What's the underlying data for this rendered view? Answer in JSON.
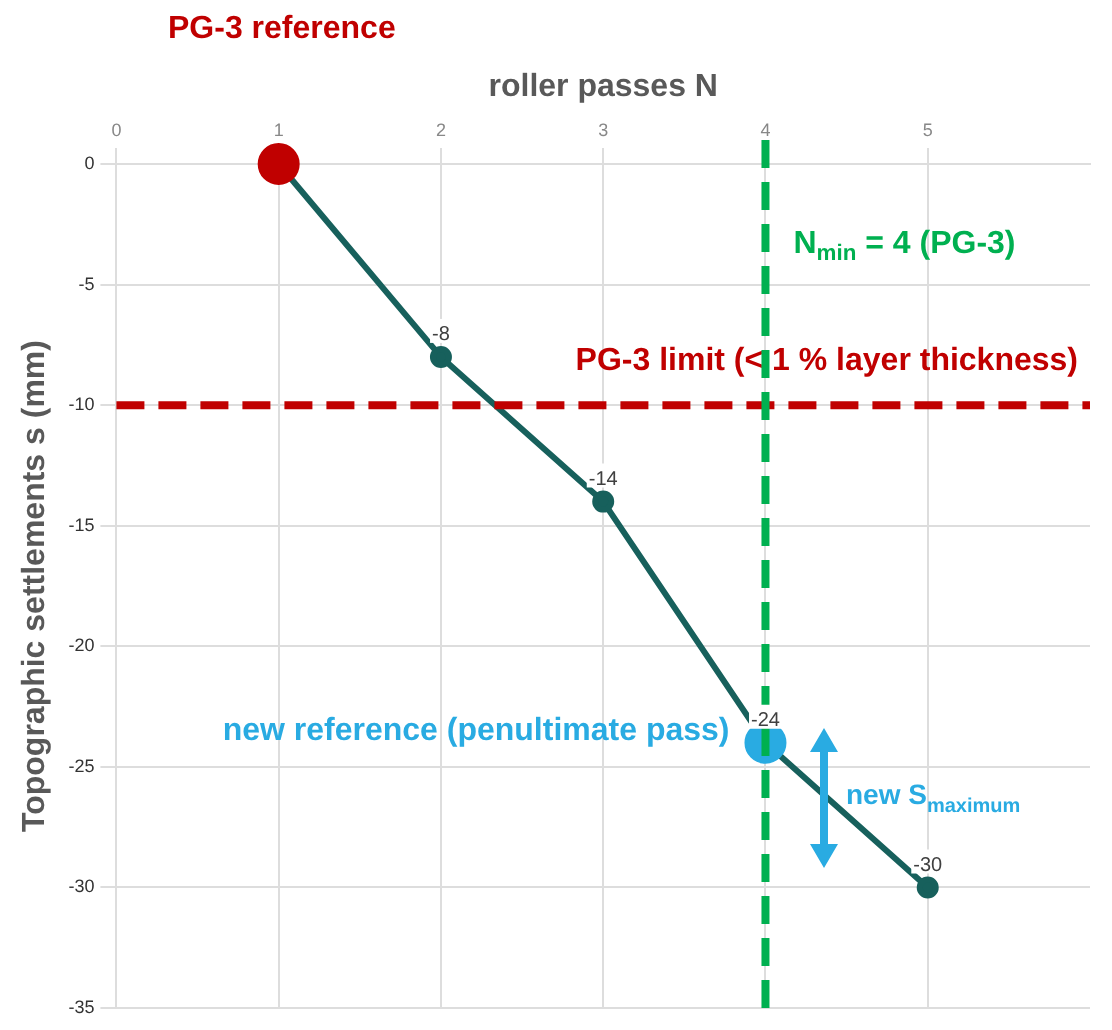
{
  "chart_data": {
    "type": "line",
    "xlabel": "roller passes N",
    "ylabel": "Topographic settlements s (mm)",
    "x": [
      1,
      2,
      3,
      4,
      5
    ],
    "series": [
      {
        "type": "line",
        "color": "#17605c",
        "values": [
          0,
          -8,
          -14,
          -24,
          -30
        ],
        "value_labels": [
          null,
          "-8",
          "-14",
          "-24",
          "-30"
        ],
        "marker": "circle"
      },
      {
        "type": "scatter",
        "color": "#c00000",
        "x": [
          1
        ],
        "values": [
          0
        ]
      },
      {
        "type": "scatter",
        "color": "#29abe2",
        "x": [
          4
        ],
        "values": [
          -24
        ]
      }
    ],
    "xlim": [
      0,
      6
    ],
    "xticks": [
      0,
      1,
      2,
      3,
      4,
      5
    ],
    "ylim": [
      -35,
      0
    ],
    "yticks": [
      0,
      -5,
      -10,
      -15,
      -20,
      -25,
      -30,
      -35
    ],
    "grid": true,
    "legend": false,
    "ref_lines": [
      {
        "axis": "y",
        "value": -10,
        "label": "PG-3 limit (< 1 % layer thickness)",
        "color": "#c00000",
        "line_style": "dashed"
      },
      {
        "axis": "x",
        "value": 4,
        "label": "N$_{min}$ = 4 (PG-3)",
        "color": "#00b050",
        "line_style": "dashed"
      }
    ],
    "annotations": [
      "PG-3 reference",
      {
        "text": "new reference (penultimate pass)",
        "x": 4,
        "y": -24
      },
      "new S$_{maximum}$"
    ]
  }
}
